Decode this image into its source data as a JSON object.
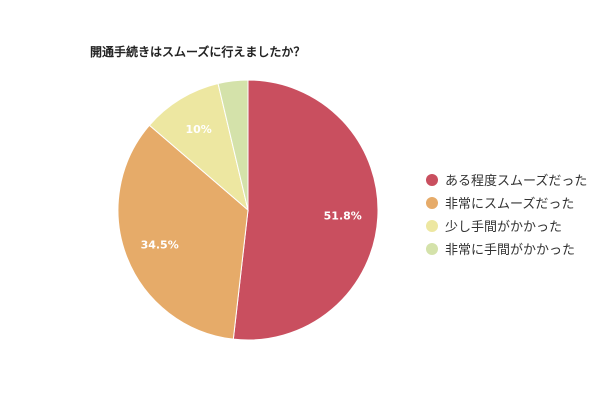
{
  "chart_data": {
    "type": "pie",
    "title": "開通手続きはスムーズに行えましたか？",
    "slices": [
      {
        "label": "ある程度スムーズだった",
        "value": 51.8,
        "value_label": "51.8%",
        "color": "#c94f5f"
      },
      {
        "label": "非常にスムーズだった",
        "value": 34.5,
        "value_label": "34.5%",
        "color": "#e6ab69"
      },
      {
        "label": "少し手間がかかった",
        "value": 10.0,
        "value_label": "10%",
        "color": "#ede7a1"
      },
      {
        "label": "非常に手間がかかった",
        "value": 3.7,
        "value_label": "",
        "color": "#d4e2aa"
      }
    ],
    "legend_position": "right",
    "start_angle": "12 o'clock",
    "direction": "clockwise"
  }
}
